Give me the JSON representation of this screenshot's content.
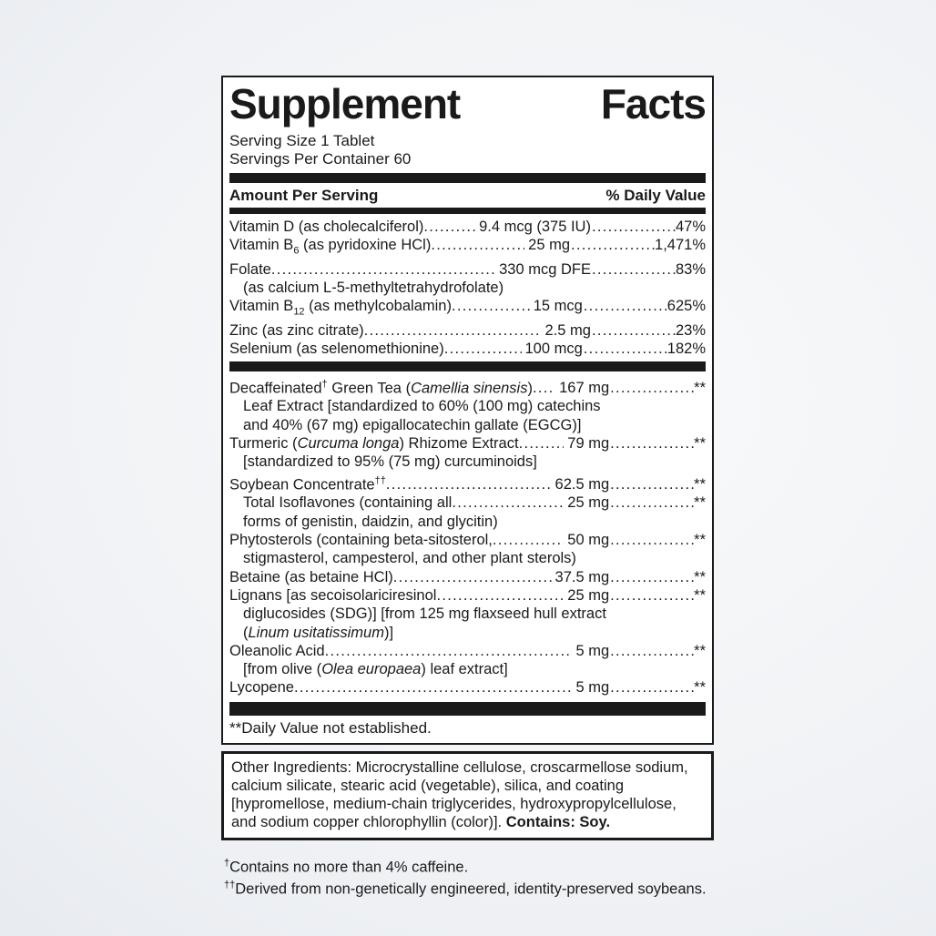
{
  "colors": {
    "ink": "#1a1a1a",
    "label_background": "#ffffff",
    "page_background_center": "#f9fafb",
    "page_background_edge": "#d9dfe8"
  },
  "panel": {
    "title_words": [
      "Supplement",
      "Facts"
    ],
    "serving_size": "Serving Size 1 Tablet",
    "servings_per_container": "Servings Per Container 60",
    "header": {
      "left": "Amount Per Serving",
      "right": "% Daily Value"
    },
    "sections": [
      {
        "name": "vitamins-minerals",
        "rows": [
          {
            "parts": [
              {
                "t": "Vitamin D (as cholecalciferol)"
              }
            ],
            "amount": "9.4 mcg (375 IU)",
            "dv": "47%"
          },
          {
            "parts": [
              {
                "t": "Vitamin B"
              },
              {
                "sub": "6"
              },
              {
                "t": " (as pyridoxine HCl)"
              }
            ],
            "amount": "25 mg",
            "dv": "1,471%"
          },
          {
            "parts": [
              {
                "t": "Folate"
              }
            ],
            "amount": "330 mcg DFE",
            "dv": "83%"
          },
          {
            "parts": [
              {
                "t": "(as calcium L-5-methyltetrahydrofolate)"
              }
            ],
            "indent": true
          },
          {
            "parts": [
              {
                "t": "Vitamin B"
              },
              {
                "sub": "12"
              },
              {
                "t": " (as methylcobalamin)"
              }
            ],
            "amount": "15 mcg",
            "dv": "625%"
          },
          {
            "parts": [
              {
                "t": "Zinc (as zinc citrate)"
              }
            ],
            "amount": "2.5 mg",
            "dv": "23%"
          },
          {
            "parts": [
              {
                "t": "Selenium (as selenomethionine)"
              }
            ],
            "amount": "100 mcg",
            "dv": "182%"
          }
        ]
      },
      {
        "name": "botanicals-other",
        "rows": [
          {
            "parts": [
              {
                "t": "Decaffeinated"
              },
              {
                "sup": "†"
              },
              {
                "t": " Green Tea ("
              },
              {
                "i": "Camellia sinensis"
              },
              {
                "t": ")"
              }
            ],
            "amount": "167 mg",
            "dv": "**"
          },
          {
            "parts": [
              {
                "t": "Leaf Extract [standardized to 60% (100 mg) catechins"
              }
            ],
            "indent": true
          },
          {
            "parts": [
              {
                "t": "and 40% (67 mg) epigallocatechin gallate (EGCG)]"
              }
            ],
            "indent": true
          },
          {
            "parts": [
              {
                "t": "Turmeric ("
              },
              {
                "i": "Curcuma longa"
              },
              {
                "t": ") Rhizome Extract"
              }
            ],
            "amount": "79 mg",
            "dv": "**"
          },
          {
            "parts": [
              {
                "t": "[standardized to 95% (75 mg) curcuminoids]"
              }
            ],
            "indent": true
          },
          {
            "parts": [
              {
                "t": "Soybean Concentrate"
              },
              {
                "sup": "††"
              }
            ],
            "amount": "62.5 mg",
            "dv": "**"
          },
          {
            "parts": [
              {
                "t": "Total Isoflavones (containing all"
              }
            ],
            "amount": "25 mg",
            "dv": "**",
            "indent": true
          },
          {
            "parts": [
              {
                "t": "forms of genistin, daidzin, and glycitin)"
              }
            ],
            "indent": true
          },
          {
            "parts": [
              {
                "t": "Phytosterols (containing beta-sitosterol,"
              }
            ],
            "amount": "50 mg",
            "dv": "**"
          },
          {
            "parts": [
              {
                "t": "stigmasterol, campesterol, and other plant sterols)"
              }
            ],
            "indent": true
          },
          {
            "parts": [
              {
                "t": "Betaine (as betaine HCl)"
              }
            ],
            "amount": "37.5 mg",
            "dv": "**"
          },
          {
            "parts": [
              {
                "t": "Lignans [as secoisolariciresinol"
              }
            ],
            "amount": "25 mg",
            "dv": "**"
          },
          {
            "parts": [
              {
                "t": "diglucosides (SDG)] [from 125 mg flaxseed hull extract"
              }
            ],
            "indent": true
          },
          {
            "parts": [
              {
                "t": "("
              },
              {
                "i": "Linum usitatissimum"
              },
              {
                "t": ")]"
              }
            ],
            "indent": true
          },
          {
            "parts": [
              {
                "t": "Oleanolic Acid"
              }
            ],
            "amount": "5 mg",
            "dv": "**"
          },
          {
            "parts": [
              {
                "t": "[from olive ("
              },
              {
                "i": "Olea europaea"
              },
              {
                "t": ") leaf extract]"
              }
            ],
            "indent": true
          },
          {
            "parts": [
              {
                "t": "Lycopene"
              }
            ],
            "amount": "5 mg",
            "dv": "**"
          }
        ]
      }
    ],
    "dv_footnote": "**Daily Value not established."
  },
  "other_ingredients": {
    "text": "Other Ingredients: Microcrystalline cellulose, croscarmellose sodium, calcium silicate, stearic acid (vegetable), silica, and coating [hypromellose, medium-chain triglycerides, hydroxypropylcellulose, and sodium copper chlorophyllin (color)].",
    "contains": "Contains: Soy."
  },
  "footnotes": [
    {
      "sup": "†",
      "text": "Contains no more than 4% caffeine."
    },
    {
      "sup": "††",
      "text": "Derived from non-genetically engineered, identity-preserved soybeans."
    }
  ]
}
